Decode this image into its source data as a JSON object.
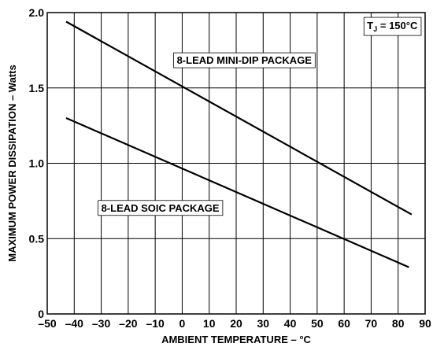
{
  "chart_data": {
    "type": "line",
    "xlabel": "AMBIENT TEMPERATURE – °C",
    "ylabel": "MAXIMUM POWER DISSIPATION – Watts",
    "xlim": [
      -50,
      90
    ],
    "ylim": [
      0,
      2.0
    ],
    "x_ticks": [
      "–50",
      "–40",
      "–30",
      "–20",
      "–10",
      "0",
      "10",
      "20",
      "30",
      "40",
      "50",
      "60",
      "70",
      "80",
      "90"
    ],
    "x_tick_values": [
      -50,
      -40,
      -30,
      -20,
      -10,
      0,
      10,
      20,
      30,
      40,
      50,
      60,
      70,
      80,
      90
    ],
    "y_ticks": [
      "0",
      "0.5",
      "1.0",
      "1.5",
      "2.0"
    ],
    "y_tick_values": [
      0,
      0.5,
      1.0,
      1.5,
      2.0
    ],
    "grid": true,
    "annotation": {
      "main": "T",
      "sub": "J",
      "rest": " = 150°C"
    },
    "series": [
      {
        "name": "8-LEAD MINI-DIP PACKAGE",
        "x": [
          -43,
          85
        ],
        "y": [
          1.94,
          0.66
        ]
      },
      {
        "name": "8-LEAD SOIC PACKAGE",
        "x": [
          -43,
          84
        ],
        "y": [
          1.3,
          0.31
        ]
      }
    ]
  }
}
